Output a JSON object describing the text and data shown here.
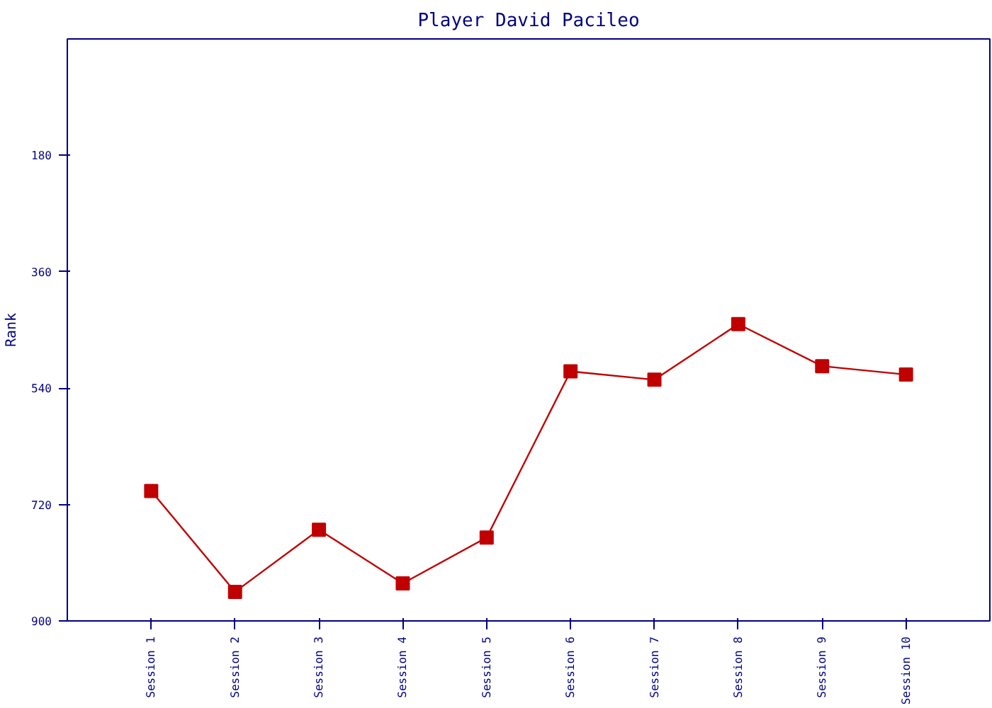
{
  "chart_data": {
    "type": "line",
    "title": "Player David Pacileo",
    "ylabel": "Rank",
    "categories": [
      "Session 1",
      "Session 2",
      "Session 3",
      "Session 4",
      "Session 5",
      "Session 6",
      "Session 7",
      "Session 8",
      "Session 9",
      "Session 10"
    ],
    "series": [
      {
        "color": "#c00000",
        "values": [
          699,
          855,
          759,
          842,
          771,
          514,
          527,
          441,
          506,
          519
        ]
      }
    ],
    "ylim": [
      900,
      0
    ],
    "yticks": [
      180,
      360,
      540,
      720,
      900
    ],
    "grid": false,
    "marker": "square",
    "line_style": "solid"
  }
}
